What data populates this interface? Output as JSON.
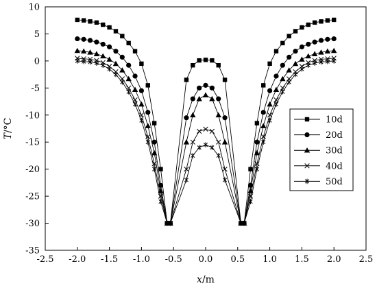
{
  "chart_data": {
    "type": "line",
    "title": "",
    "xlabel_var": "x",
    "xlabel_unit": "/m",
    "ylabel_var": "T",
    "ylabel_unit": "/°C",
    "xlim": [
      -2.5,
      2.5
    ],
    "ylim": [
      -35,
      10
    ],
    "xticks": [
      -2.5,
      -2.0,
      -1.5,
      -1.0,
      -0.5,
      0.0,
      0.5,
      1.0,
      1.5,
      2.0,
      2.5
    ],
    "xtick_labels": [
      "-2.5",
      "-2.0",
      "-1.5",
      "-1.0",
      "-0.5",
      "0.0",
      "0.5",
      "1.0",
      "1.5",
      "2.0",
      "2.5"
    ],
    "yticks": [
      -35,
      -30,
      -25,
      -20,
      -15,
      -10,
      -5,
      0,
      5,
      10
    ],
    "ytick_labels": [
      "-35",
      "-30",
      "-25",
      "-20",
      "-15",
      "-10",
      "-5",
      "0",
      "5",
      "10"
    ],
    "grid": false,
    "legend_position": "right",
    "line_color": "#000000",
    "x": [
      -2.0,
      -1.9,
      -1.8,
      -1.7,
      -1.6,
      -1.5,
      -1.4,
      -1.3,
      -1.2,
      -1.1,
      -1.0,
      -0.9,
      -0.8,
      -0.7,
      -0.6,
      -0.55,
      -0.3,
      -0.2,
      -0.1,
      0.0,
      0.1,
      0.2,
      0.3,
      0.55,
      0.6,
      0.7,
      0.8,
      0.9,
      1.0,
      1.1,
      1.2,
      1.3,
      1.4,
      1.5,
      1.6,
      1.7,
      1.8,
      1.9,
      2.0
    ],
    "series": [
      {
        "name": "10d",
        "marker": "square",
        "values": [
          7.6,
          7.5,
          7.3,
          7.1,
          6.7,
          6.2,
          5.5,
          4.6,
          3.3,
          1.8,
          -0.5,
          -4.5,
          -11.5,
          -20,
          -30,
          -30,
          -3.5,
          -0.8,
          0.1,
          0.2,
          0.1,
          -0.8,
          -3.5,
          -30,
          -30,
          -20,
          -11.5,
          -4.5,
          -0.5,
          1.8,
          3.3,
          4.6,
          5.5,
          6.2,
          6.7,
          7.1,
          7.3,
          7.5,
          7.6
        ]
      },
      {
        "name": "20d",
        "marker": "circle",
        "values": [
          4.1,
          4.0,
          3.8,
          3.5,
          3.1,
          2.6,
          1.8,
          0.7,
          -0.8,
          -2.8,
          -5.5,
          -9.5,
          -15,
          -23,
          -30,
          -30,
          -10.5,
          -7.0,
          -5.0,
          -4.5,
          -5.0,
          -7.0,
          -10.5,
          -30,
          -30,
          -23,
          -15,
          -9.5,
          -5.5,
          -2.8,
          -0.8,
          0.7,
          1.8,
          2.6,
          3.1,
          3.5,
          3.8,
          4.0,
          4.1
        ]
      },
      {
        "name": "30d",
        "marker": "triangle",
        "values": [
          1.9,
          1.8,
          1.6,
          1.3,
          0.9,
          0.3,
          -0.5,
          -1.7,
          -3.3,
          -5.3,
          -8.0,
          -12,
          -17,
          -24,
          -30,
          -30,
          -15,
          -10,
          -7.0,
          -6.3,
          -7.0,
          -10,
          -15,
          -30,
          -30,
          -24,
          -17,
          -12,
          -8.0,
          -5.3,
          -3.3,
          -1.7,
          -0.5,
          0.3,
          0.9,
          1.3,
          1.6,
          1.8,
          1.9
        ]
      },
      {
        "name": "40d",
        "marker": "x",
        "values": [
          0.5,
          0.4,
          0.3,
          0.1,
          -0.3,
          -1.0,
          -2.0,
          -3.3,
          -5.0,
          -7.2,
          -10,
          -14,
          -19,
          -25,
          -30,
          -30,
          -20,
          -15,
          -13,
          -12.6,
          -13,
          -15,
          -20,
          -30,
          -30,
          -25,
          -19,
          -14,
          -10,
          -7.2,
          -5.0,
          -3.3,
          -2.0,
          -1.0,
          -0.3,
          0.1,
          0.3,
          0.4,
          0.5
        ]
      },
      {
        "name": "50d",
        "marker": "star",
        "values": [
          0.0,
          -0.1,
          -0.2,
          -0.4,
          -0.8,
          -1.5,
          -2.5,
          -3.9,
          -5.7,
          -8.0,
          -11,
          -15,
          -20,
          -26,
          -30,
          -30,
          -22,
          -17.5,
          -16,
          -15.5,
          -16,
          -17.5,
          -22,
          -30,
          -30,
          -26,
          -20,
          -15,
          -11,
          -8.0,
          -5.7,
          -3.9,
          -2.5,
          -1.5,
          -0.8,
          -0.4,
          -0.2,
          -0.1,
          0.0
        ]
      }
    ]
  }
}
